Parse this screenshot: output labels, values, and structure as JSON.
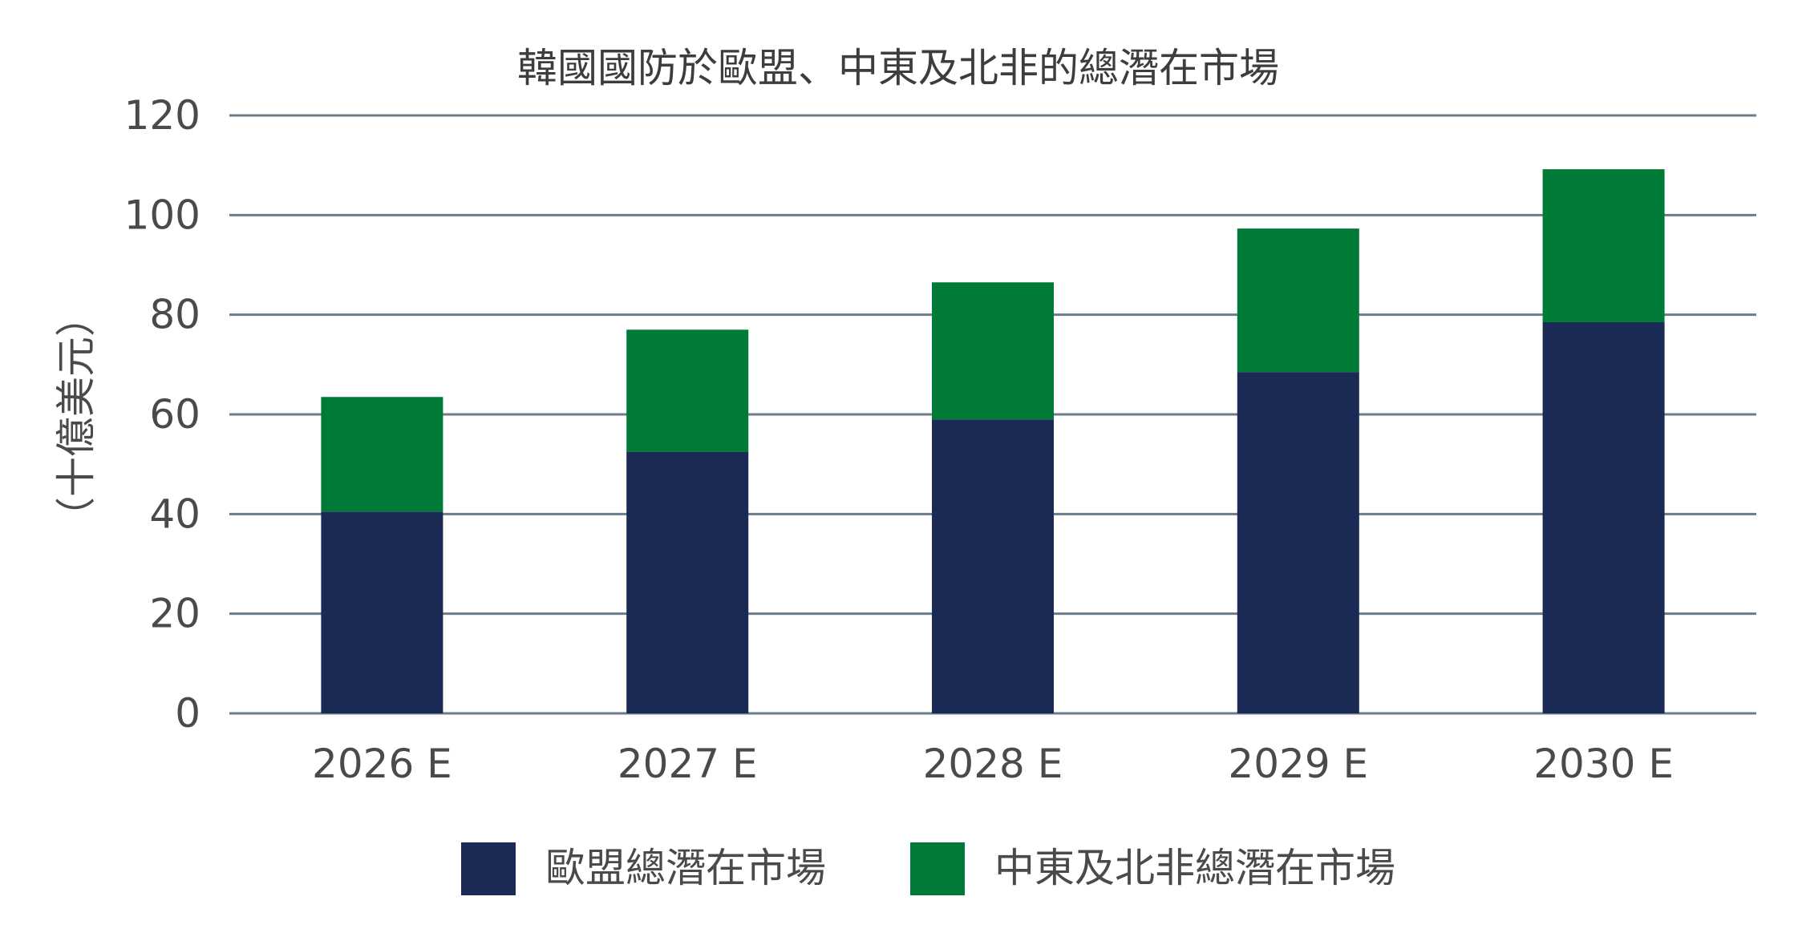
{
  "chart_data": {
    "type": "bar",
    "stacked": true,
    "title": "韓國國防於歐盟、中東及北非的總潛在市場",
    "ylabel": "（十億美元）",
    "xlabel": "",
    "ylim": [
      0,
      120
    ],
    "yticks": [
      0,
      20,
      40,
      60,
      80,
      100,
      120
    ],
    "categories": [
      "2026 E",
      "2027 E",
      "2028 E",
      "2029 E",
      "2030 E"
    ],
    "series": [
      {
        "name": "歐盟總潛在市場",
        "color": "#1b2a55",
        "values": [
          40.5,
          52.5,
          59,
          68.5,
          78.5
        ]
      },
      {
        "name": "中東及北非總潛在市場",
        "color": "#007a37",
        "values": [
          23,
          24.5,
          27.5,
          28.8,
          30.7
        ]
      }
    ],
    "grid": true,
    "legend": "bottom"
  }
}
